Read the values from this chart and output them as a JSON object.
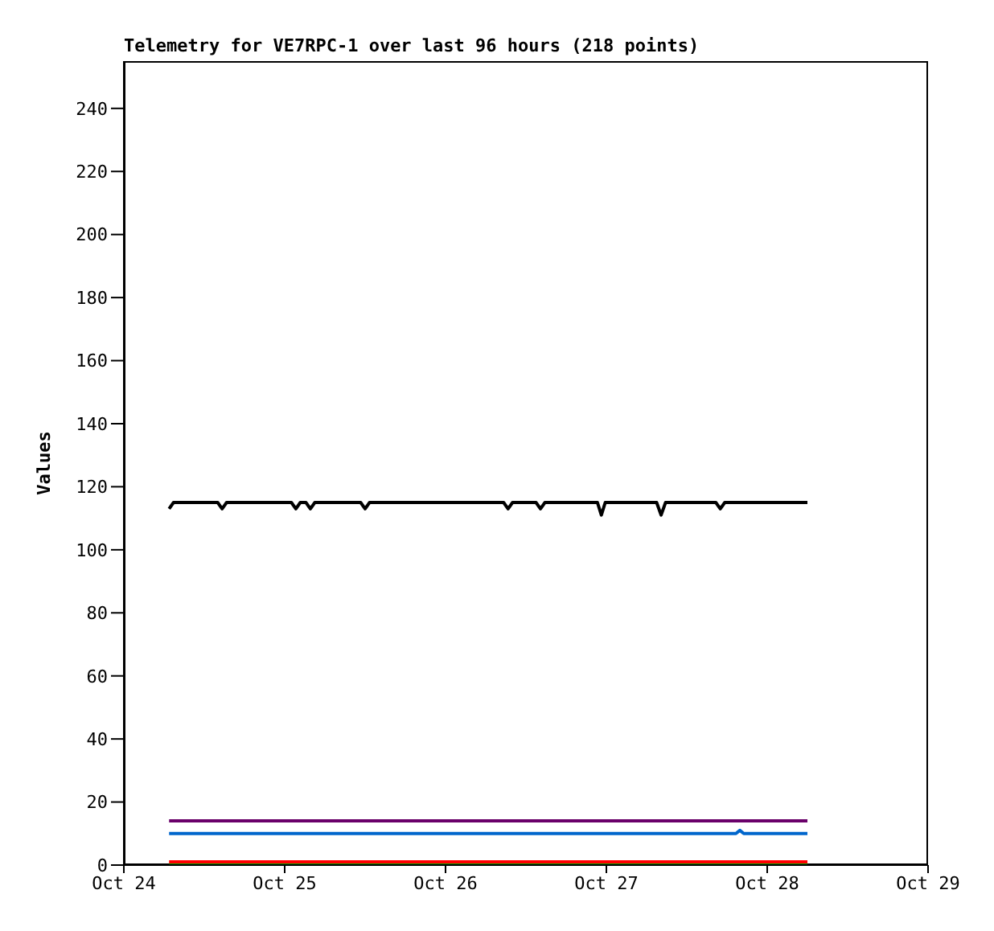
{
  "chart_data": {
    "type": "line",
    "title": "Telemetry for VE7RPC-1 over last 96 hours (218 points)",
    "ylabel": "Values",
    "xlim": [
      "--10-24",
      "--10-29"
    ],
    "xticks": [
      {
        "value": "--10-24",
        "label": "Oct 24"
      },
      {
        "value": "--10-25",
        "label": "Oct 25"
      },
      {
        "value": "--10-26",
        "label": "Oct 26"
      },
      {
        "value": "--10-27",
        "label": "Oct 27"
      },
      {
        "value": "--10-28",
        "label": "Oct 28"
      },
      {
        "value": "--10-29",
        "label": "Oct 29"
      }
    ],
    "ylim": [
      0,
      255
    ],
    "yticks": [
      0,
      20,
      40,
      60,
      80,
      100,
      120,
      140,
      160,
      180,
      200,
      220,
      240
    ],
    "grid": false,
    "legend": false,
    "marker": "none",
    "line_style": "solid",
    "series": [
      {
        "color": "#000000",
        "x": [
          "--10-24T06:45",
          "--10-24T07:25",
          "--10-24T14:00",
          "--10-24T14:40",
          "--10-24T15:20",
          "--10-25T01:00",
          "--10-25T01:40",
          "--10-25T02:20",
          "--10-25T03:10",
          "--10-25T03:50",
          "--10-25T04:30",
          "--10-25T11:20",
          "--10-25T12:00",
          "--10-25T12:40",
          "--10-26T08:40",
          "--10-26T09:20",
          "--10-26T10:00",
          "--10-26T13:30",
          "--10-26T14:10",
          "--10-26T14:50",
          "--10-26T22:40",
          "--10-26T23:15",
          "--10-26T23:50",
          "--10-27T07:30",
          "--10-27T08:10",
          "--10-27T08:50",
          "--10-27T16:20",
          "--10-27T17:00",
          "--10-27T17:40",
          "--10-28T06:00"
        ],
        "values": [
          113,
          115,
          115,
          113,
          115,
          115,
          113,
          115,
          115,
          113,
          115,
          115,
          113,
          115,
          115,
          113,
          115,
          115,
          113,
          115,
          115,
          111,
          115,
          115,
          111,
          115,
          115,
          113,
          115,
          115
        ]
      },
      {
        "color": "#6a006a",
        "x": [
          "--10-24T06:45",
          "--10-28T06:00"
        ],
        "values": [
          14,
          14
        ]
      },
      {
        "color": "#0066cc",
        "x": [
          "--10-24T06:45",
          "--10-27T19:20",
          "--10-27T19:55",
          "--10-27T20:30",
          "--10-28T06:00"
        ],
        "values": [
          10,
          10,
          11,
          10,
          10
        ]
      },
      {
        "color": "#ff0000",
        "x": [
          "--10-24T06:45",
          "--10-28T06:00"
        ],
        "values": [
          1,
          1
        ]
      },
      {
        "color": "#00aa00",
        "x": [
          "--10-24T06:45",
          "--10-28T06:00"
        ],
        "values": [
          0,
          0
        ]
      }
    ]
  }
}
